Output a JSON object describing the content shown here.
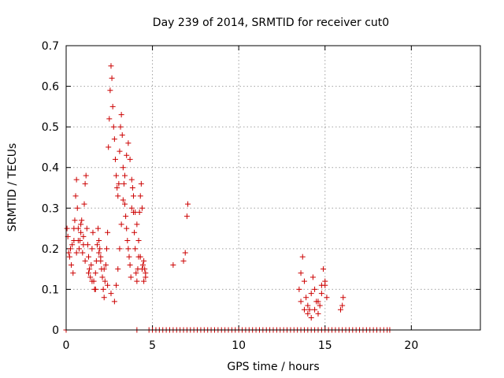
{
  "chart_data": {
    "type": "scatter",
    "title": "Day 239 of 2014, SRMTID for receiver cut0",
    "xlabel": "GPS time / hours",
    "ylabel": "SRMTID / TECUs",
    "xlim": [
      0,
      24
    ],
    "ylim": [
      0,
      0.7
    ],
    "x_ticks": [
      0,
      5,
      10,
      15,
      20
    ],
    "x_tick_labels": [
      "0",
      "5",
      "10",
      "15",
      "20"
    ],
    "y_ticks": [
      0,
      0.1,
      0.2,
      0.3,
      0.4,
      0.5,
      0.6,
      0.7
    ],
    "y_tick_labels": [
      "0",
      "0.1",
      "0.2",
      "0.3",
      "0.4",
      "0.5",
      "0.6",
      "0.7"
    ],
    "grid": true,
    "marker": "plus",
    "color": "#cc0000",
    "series": [
      {
        "name": "SRMTID",
        "x": [
          0.05,
          0.15,
          0.25,
          0.3,
          0.4,
          0.45,
          0.5,
          0.55,
          0.6,
          0.65,
          0.7,
          0.75,
          0.8,
          0.85,
          0.9,
          0.95,
          1.0,
          1.05,
          1.1,
          1.15,
          1.2,
          1.25,
          1.3,
          1.35,
          1.4,
          1.45,
          1.5,
          1.55,
          1.6,
          1.65,
          1.7,
          1.75,
          1.8,
          1.85,
          1.9,
          1.95,
          2.0,
          2.05,
          2.1,
          2.15,
          2.2,
          2.25,
          2.3,
          2.35,
          2.4,
          2.45,
          2.5,
          2.55,
          2.6,
          2.65,
          2.7,
          2.75,
          2.8,
          2.85,
          2.9,
          2.95,
          3.0,
          3.05,
          3.1,
          3.15,
          3.2,
          3.25,
          3.3,
          3.35,
          3.4,
          3.45,
          3.5,
          3.55,
          3.6,
          3.65,
          3.7,
          3.75,
          3.8,
          3.85,
          3.9,
          3.95,
          4.0,
          4.05,
          4.1,
          4.15,
          4.2,
          4.25,
          4.3,
          4.35,
          4.4,
          4.45,
          4.5,
          4.55,
          4.6,
          6.2,
          6.8,
          6.9,
          7.0,
          7.05,
          13.5,
          13.6,
          13.7,
          13.8,
          13.9,
          14.0,
          14.1,
          14.2,
          14.3,
          14.4,
          14.5,
          14.6,
          14.7,
          14.8,
          14.9,
          15.0,
          15.1,
          15.9,
          16.0,
          16.05,
          0.1,
          0.2,
          0.35,
          0.45,
          0.6,
          0.7,
          0.85,
          1.0,
          1.1,
          1.3,
          1.5,
          1.7,
          1.9,
          2.0,
          2.2,
          2.4,
          2.6,
          2.8,
          2.9,
          3.0,
          3.1,
          3.2,
          3.3,
          3.4,
          3.5,
          3.6,
          3.7,
          3.8,
          3.9,
          4.0,
          4.1,
          4.2,
          4.3,
          4.4,
          4.5,
          4.6,
          13.6,
          13.8,
          14.0,
          14.2,
          14.4,
          14.6,
          14.8,
          15.0,
          0.0,
          0.0,
          4.1,
          4.8,
          5.0,
          5.2,
          5.4,
          5.6,
          5.8,
          6.0,
          6.2,
          6.4,
          6.6,
          6.8,
          7.0,
          7.2,
          7.4,
          7.6,
          7.8,
          8.0,
          8.2,
          8.4,
          8.6,
          8.8,
          9.0,
          9.2,
          9.4,
          9.6,
          9.8,
          10.0,
          10.2,
          10.4,
          10.6,
          10.8,
          11.0,
          11.2,
          11.4,
          11.6,
          11.8,
          12.0,
          12.2,
          12.4,
          12.6,
          12.8,
          13.0,
          13.2,
          13.4,
          13.6,
          13.8,
          14.0,
          14.2,
          14.4,
          14.6,
          14.8,
          15.0,
          15.2,
          15.4,
          15.6,
          15.8,
          16.0,
          16.2,
          16.4,
          16.6,
          16.8,
          17.0,
          17.2,
          17.4,
          17.6,
          17.8,
          18.0,
          18.2,
          18.4,
          18.6,
          18.75
        ],
        "y": [
          0.25,
          0.19,
          0.2,
          0.16,
          0.14,
          0.22,
          0.27,
          0.33,
          0.37,
          0.3,
          0.25,
          0.2,
          0.22,
          0.24,
          0.27,
          0.19,
          0.23,
          0.31,
          0.36,
          0.38,
          0.25,
          0.21,
          0.18,
          0.15,
          0.13,
          0.16,
          0.2,
          0.24,
          0.12,
          0.1,
          0.14,
          0.17,
          0.21,
          0.25,
          0.22,
          0.2,
          0.18,
          0.15,
          0.13,
          0.1,
          0.08,
          0.12,
          0.16,
          0.2,
          0.24,
          0.45,
          0.52,
          0.59,
          0.65,
          0.62,
          0.55,
          0.5,
          0.47,
          0.42,
          0.38,
          0.35,
          0.33,
          0.36,
          0.44,
          0.5,
          0.53,
          0.48,
          0.4,
          0.36,
          0.31,
          0.28,
          0.25,
          0.22,
          0.2,
          0.18,
          0.16,
          0.13,
          0.3,
          0.35,
          0.29,
          0.24,
          0.2,
          0.14,
          0.12,
          0.15,
          0.18,
          0.29,
          0.33,
          0.36,
          0.3,
          0.16,
          0.17,
          0.15,
          0.13,
          0.16,
          0.17,
          0.19,
          0.28,
          0.31,
          0.1,
          0.14,
          0.18,
          0.12,
          0.08,
          0.06,
          0.05,
          0.09,
          0.13,
          0.1,
          0.07,
          0.04,
          0.06,
          0.11,
          0.15,
          0.12,
          0.08,
          0.05,
          0.06,
          0.08,
          0.23,
          0.18,
          0.21,
          0.25,
          0.19,
          0.22,
          0.26,
          0.21,
          0.17,
          0.14,
          0.12,
          0.1,
          0.19,
          0.17,
          0.15,
          0.11,
          0.09,
          0.07,
          0.11,
          0.15,
          0.2,
          0.26,
          0.32,
          0.38,
          0.43,
          0.46,
          0.42,
          0.37,
          0.33,
          0.29,
          0.26,
          0.22,
          0.18,
          0.15,
          0.12,
          0.14,
          0.07,
          0.05,
          0.04,
          0.03,
          0.05,
          0.07,
          0.09,
          0.11,
          0.0,
          0.0,
          0.0,
          0.0,
          0.0,
          0.0,
          0.0,
          0.0,
          0.0,
          0.0,
          0.0,
          0.0,
          0.0,
          0.0,
          0.0,
          0.0,
          0.0,
          0.0,
          0.0,
          0.0,
          0.0,
          0.0,
          0.0,
          0.0,
          0.0,
          0.0,
          0.0,
          0.0,
          0.0,
          0.0,
          0.0,
          0.0,
          0.0,
          0.0,
          0.0,
          0.0,
          0.0,
          0.0,
          0.0,
          0.0,
          0.0,
          0.0,
          0.0,
          0.0,
          0.0,
          0.0,
          0.0,
          0.0,
          0.0,
          0.0,
          0.0,
          0.0,
          0.0,
          0.0,
          0.0,
          0.0,
          0.0,
          0.0,
          0.0,
          0.0,
          0.0,
          0.0,
          0.0,
          0.0,
          0.0,
          0.0,
          0.0,
          0.0,
          0.0,
          0.0,
          0.0,
          0.0,
          0.0,
          0.0
        ]
      }
    ]
  }
}
